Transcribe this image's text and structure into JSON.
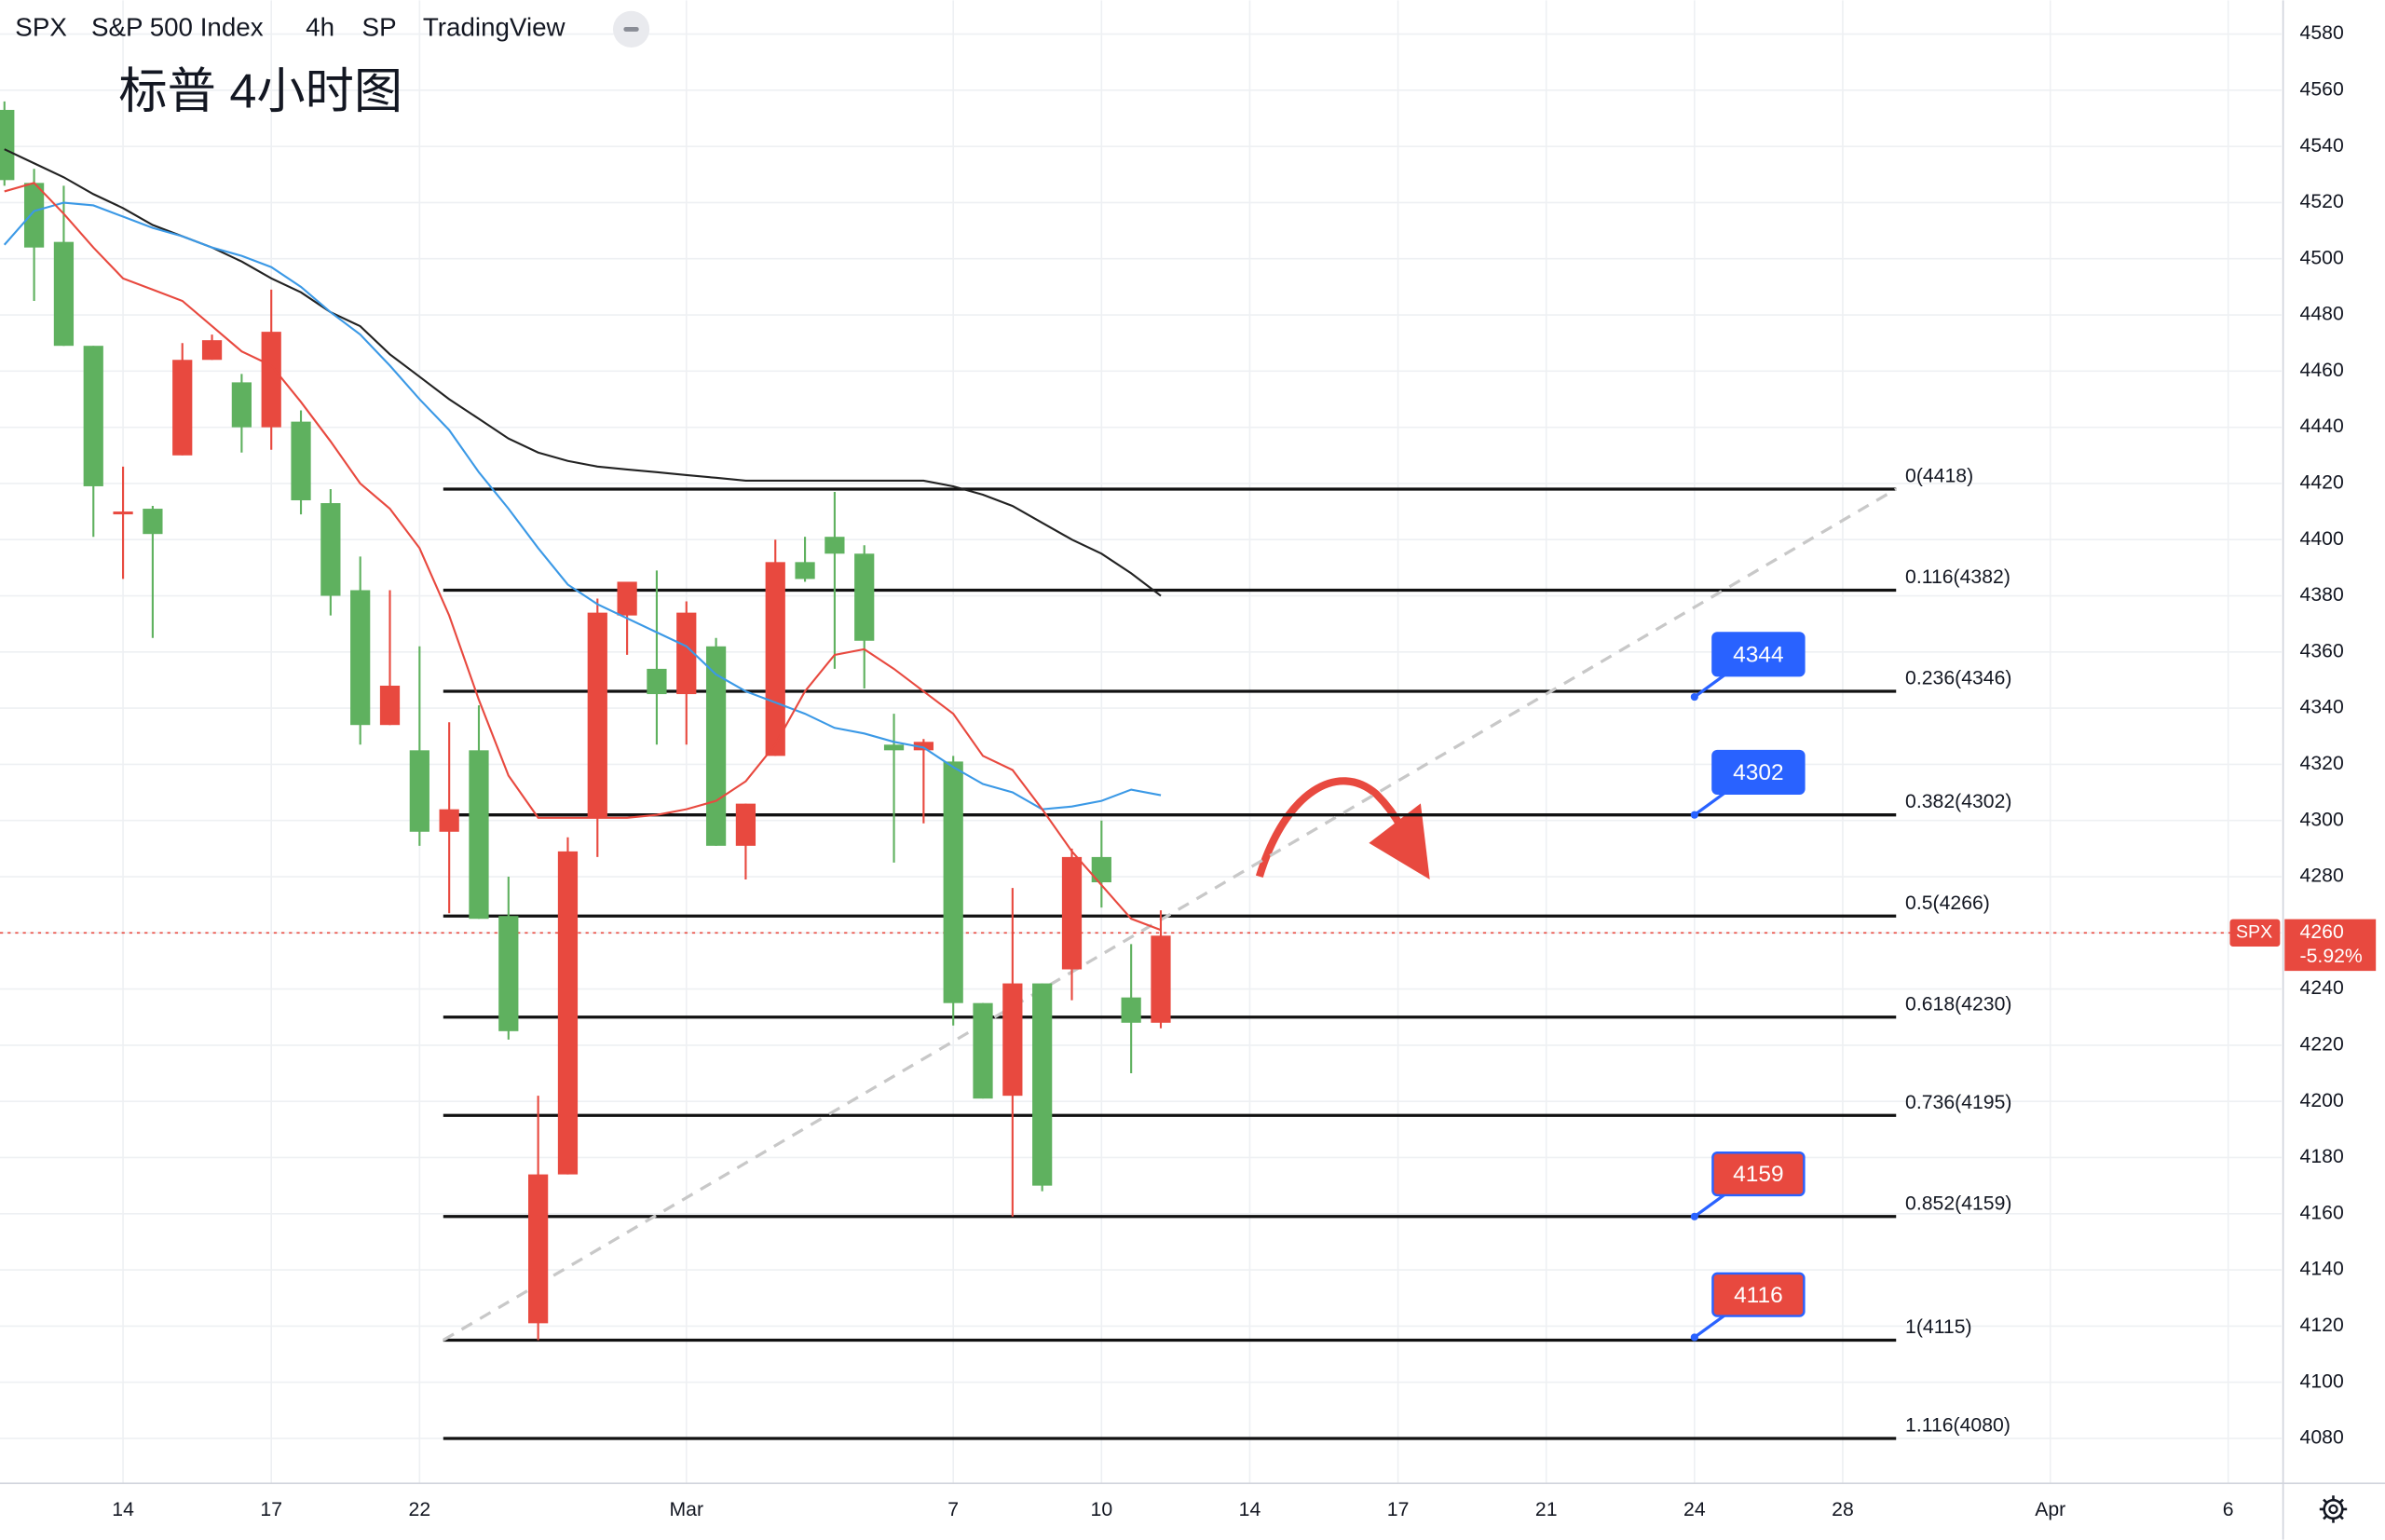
{
  "header": {
    "symbol": "SPX",
    "name": "S&P 500 Index",
    "interval": "4h",
    "exchange": "SP",
    "source": "TradingView"
  },
  "chart_data": {
    "type": "candlestick",
    "title": "标普 4小时图",
    "x": [
      0,
      1,
      2,
      3,
      4,
      5,
      6,
      7,
      8,
      9,
      10,
      11,
      12,
      13,
      14,
      15,
      16,
      17,
      18,
      19,
      20,
      21,
      22,
      23,
      24,
      25,
      26,
      27,
      28,
      29,
      30,
      31,
      32,
      33,
      34,
      35,
      36,
      37,
      38,
      39
    ],
    "open": [
      4528,
      4504,
      4469,
      4419,
      4410,
      4402,
      4464,
      4471,
      4440,
      4474,
      4414,
      4380,
      4334,
      4348,
      4296,
      4304,
      4265,
      4225,
      4174,
      4289,
      4374,
      4385,
      4345,
      4374,
      4291,
      4306,
      4392,
      4386,
      4395,
      4364,
      4325,
      4328,
      4235,
      4201,
      4242,
      4170,
      4287,
      4278,
      4228,
      4259
    ],
    "high": [
      4556,
      4532,
      4526,
      4469,
      4426,
      4412,
      4470,
      4473,
      4459,
      4489,
      4446,
      4418,
      4394,
      4382,
      4362,
      4335,
      4341,
      4280,
      4202,
      4294,
      4379,
      4385,
      4389,
      4378,
      4365,
      4306,
      4400,
      4401,
      4417,
      4398,
      4338,
      4329,
      4323,
      4235,
      4276,
      4242,
      4290,
      4300,
      4256,
      4268
    ],
    "low": [
      4526,
      4485,
      4469,
      4401,
      4386,
      4365,
      4430,
      4464,
      4431,
      4432,
      4409,
      4373,
      4327,
      4334,
      4291,
      4267,
      4265,
      4222,
      4115,
      4174,
      4287,
      4359,
      4327,
      4327,
      4291,
      4279,
      4323,
      4385,
      4354,
      4347,
      4285,
      4299,
      4227,
      4201,
      4159,
      4168,
      4236,
      4269,
      4210,
      4226
    ],
    "close": [
      4553,
      4527,
      4506,
      4469,
      4409,
      4411,
      4430,
      4464,
      4456,
      4440,
      4442,
      4413,
      4382,
      4334,
      4325,
      4296,
      4325,
      4266,
      4121,
      4174,
      4301,
      4373,
      4354,
      4345,
      4362,
      4291,
      4323,
      4392,
      4401,
      4395,
      4327,
      4325,
      4321,
      4235,
      4202,
      4242,
      4247,
      4287,
      4237,
      4228
    ],
    "up_color": "#5fb15f",
    "down_color": "#e8493f",
    "series": [
      {
        "color": "#222222",
        "values": [
          4539,
          4534,
          4529,
          4523,
          4518,
          4512,
          4508,
          4504,
          4499,
          4493,
          4488,
          4481,
          4476,
          4466,
          4458,
          4450,
          4443,
          4436,
          4431,
          4428,
          4426,
          4425,
          4424,
          4423,
          4422,
          4421,
          4421,
          4421,
          4421,
          4421,
          4421,
          4421,
          4419,
          4416,
          4412,
          4406,
          4400,
          4395,
          4388,
          4380
        ]
      },
      {
        "color": "#3b99e6",
        "values": [
          4505,
          4517,
          4520,
          4519,
          4515,
          4511,
          4508,
          4504,
          4501,
          4497,
          4490,
          4481,
          4473,
          4462,
          4450,
          4439,
          4424,
          4411,
          4397,
          4384,
          4377,
          4372,
          4367,
          4362,
          4352,
          4346,
          4342,
          4338,
          4333,
          4331,
          4328,
          4326,
          4319,
          4313,
          4310,
          4304,
          4305,
          4307,
          4311,
          4309
        ]
      },
      {
        "color": "#e8493f",
        "values": [
          4524,
          4527,
          4516,
          4504,
          4493,
          4489,
          4485,
          4476,
          4467,
          4462,
          4449,
          4435,
          4420,
          4411,
          4397,
          4373,
          4343,
          4316,
          4301,
          4301,
          4301,
          4301,
          4302,
          4304,
          4307,
          4314,
          4327,
          4346,
          4359,
          4361,
          4354,
          4346,
          4338,
          4323,
          4318,
          4304,
          4289,
          4277,
          4265,
          4261
        ]
      }
    ],
    "fib_x": [
      14.8,
      63.8
    ],
    "fib_levels": [
      {
        "value": 4418,
        "label": "0(4418)"
      },
      {
        "value": 4382,
        "label": "0.116(4382)"
      },
      {
        "value": 4346,
        "label": "0.236(4346)"
      },
      {
        "value": 4302,
        "label": "0.382(4302)"
      },
      {
        "value": 4266,
        "label": "0.5(4266)"
      },
      {
        "value": 4230,
        "label": "0.618(4230)"
      },
      {
        "value": 4195,
        "label": "0.736(4195)"
      },
      {
        "value": 4159,
        "label": "0.852(4159)"
      },
      {
        "value": 4115,
        "label": "1(4115)"
      },
      {
        "value": 4080,
        "label": "1.116(4080)"
      }
    ],
    "trendline": {
      "x": [
        14.8,
        63.8
      ],
      "y": [
        4115,
        4418
      ]
    },
    "callouts": [
      {
        "x": 57,
        "value": 4344,
        "color": "#2962ff"
      },
      {
        "x": 57,
        "value": 4302,
        "color": "#2962ff"
      },
      {
        "x": 57,
        "value": 4159,
        "color": "#e8493f"
      },
      {
        "x": 57,
        "value": 4116,
        "color": "#e8493f"
      }
    ],
    "price": {
      "symbol": "SPX",
      "value": 4260,
      "change": "-5.92%",
      "color": "#e8493f"
    },
    "xlim": [
      -0.15,
      76.8
    ],
    "xticks": [
      {
        "value": 4,
        "label": "14"
      },
      {
        "value": 9,
        "label": "17"
      },
      {
        "value": 14,
        "label": "22"
      },
      {
        "value": 23,
        "label": "Mar"
      },
      {
        "value": 32,
        "label": "7"
      },
      {
        "value": 37,
        "label": "10"
      },
      {
        "value": 42,
        "label": "14"
      },
      {
        "value": 47,
        "label": "17"
      },
      {
        "value": 52,
        "label": "21"
      },
      {
        "value": 57,
        "label": "24"
      },
      {
        "value": 62,
        "label": "28"
      },
      {
        "value": 69,
        "label": "Apr"
      },
      {
        "value": 75,
        "label": "6"
      }
    ],
    "ylim": [
      4064,
      4592
    ],
    "yticks": [
      4080,
      4100,
      4120,
      4140,
      4160,
      4180,
      4200,
      4220,
      4240,
      4260,
      4280,
      4300,
      4320,
      4340,
      4360,
      4380,
      4400,
      4420,
      4440,
      4460,
      4480,
      4500,
      4520,
      4540,
      4560,
      4580
    ],
    "grid": true
  }
}
